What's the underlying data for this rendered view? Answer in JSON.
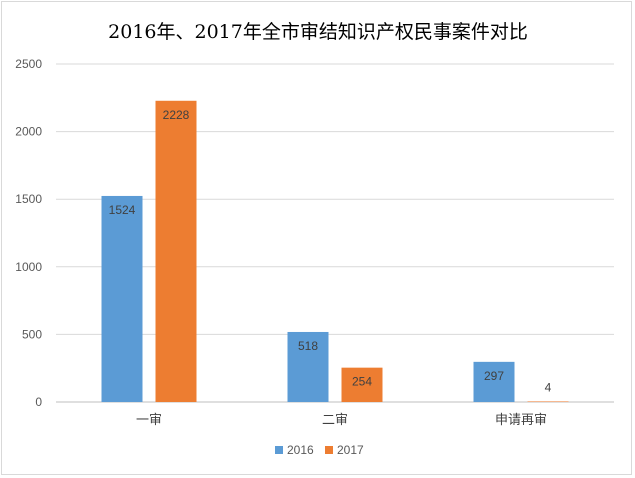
{
  "chart_data": {
    "type": "bar",
    "title": "2016年、2017年全市审结知识产权民事案件对比",
    "categories": [
      "一审",
      "二审",
      "申请再审"
    ],
    "series": [
      {
        "name": "2016",
        "color": "#5b9bd5",
        "values": [
          1524,
          518,
          297
        ]
      },
      {
        "name": "2017",
        "color": "#ed7d31",
        "values": [
          2228,
          254,
          4
        ]
      }
    ],
    "ylim": [
      0,
      2500
    ],
    "yticks": [
      "0",
      "500",
      "1000",
      "1500",
      "2000",
      "2500"
    ],
    "grid": true,
    "legend": "bottom",
    "data_labels": "inside-end"
  }
}
